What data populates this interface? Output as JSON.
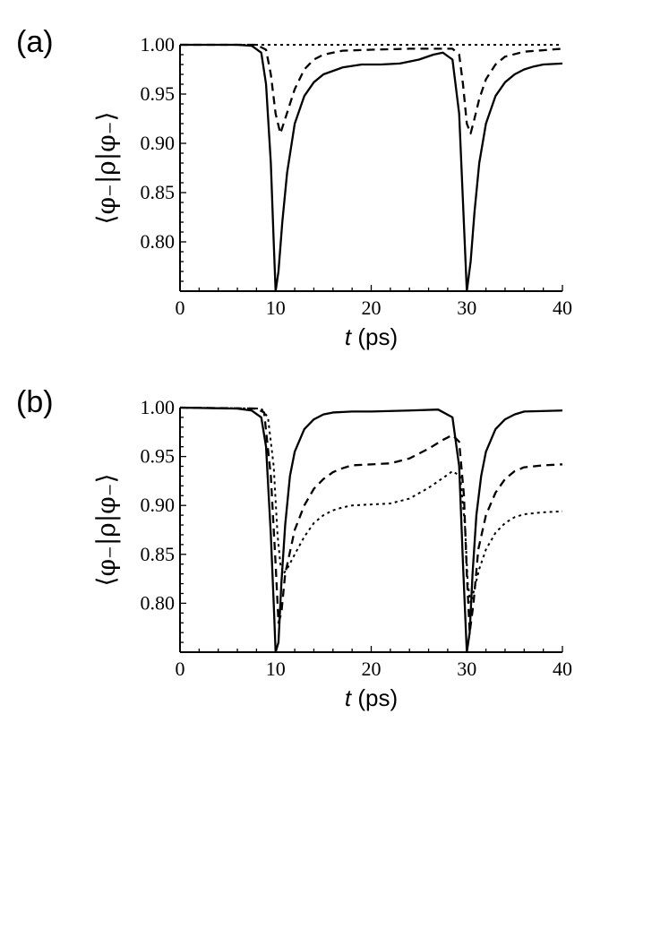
{
  "chart_data": [
    {
      "type": "line",
      "panel_label": "(a)",
      "xlabel": "t",
      "xlabel_unit": "(ps)",
      "ylabel": "⟨φ₋|ρ|φ₋⟩",
      "xlim": [
        0,
        40
      ],
      "ylim": [
        0.75,
        1.0
      ],
      "x_ticks": [
        "0",
        "10",
        "20",
        "30",
        "40"
      ],
      "y_ticks": [
        "0.80",
        "0.85",
        "0.90",
        "0.95",
        "1.00"
      ],
      "grid": false,
      "series": [
        {
          "style": "solid",
          "x": [
            0,
            6,
            7.5,
            8.5,
            9.0,
            9.5,
            9.8,
            10.0,
            10.3,
            10.7,
            11.2,
            12,
            13,
            14,
            15,
            17,
            19,
            21,
            23,
            25,
            26.5,
            27.5,
            28.5,
            29.2,
            29.6,
            30.0,
            30.4,
            30.8,
            31.3,
            32,
            33,
            34,
            35,
            36,
            37,
            38,
            40
          ],
          "y": [
            1.0,
            1.0,
            0.999,
            0.992,
            0.96,
            0.88,
            0.8,
            0.75,
            0.77,
            0.82,
            0.87,
            0.92,
            0.948,
            0.962,
            0.97,
            0.977,
            0.98,
            0.98,
            0.981,
            0.985,
            0.99,
            0.992,
            0.985,
            0.93,
            0.84,
            0.75,
            0.78,
            0.83,
            0.88,
            0.92,
            0.948,
            0.962,
            0.97,
            0.975,
            0.978,
            0.98,
            0.981
          ]
        },
        {
          "style": "dashed",
          "x": [
            0,
            8,
            9.0,
            9.5,
            10.0,
            10.5,
            11,
            12,
            13,
            14,
            15,
            17,
            20,
            24,
            27,
            28.5,
            29.2,
            29.6,
            30.0,
            30.4,
            30.8,
            31.3,
            32,
            33,
            34,
            36,
            40
          ],
          "y": [
            1.0,
            1.0,
            0.995,
            0.97,
            0.93,
            0.91,
            0.925,
            0.955,
            0.975,
            0.985,
            0.99,
            0.994,
            0.995,
            0.996,
            0.996,
            0.996,
            0.99,
            0.96,
            0.92,
            0.91,
            0.925,
            0.945,
            0.965,
            0.98,
            0.988,
            0.993,
            0.996
          ]
        },
        {
          "style": "dotted",
          "x": [
            0,
            40
          ],
          "y": [
            1.0,
            1.0
          ]
        }
      ]
    },
    {
      "type": "line",
      "panel_label": "(b)",
      "xlabel": "t",
      "xlabel_unit": "(ps)",
      "ylabel": "⟨φ₋|ρ|φ₋⟩",
      "xlim": [
        0,
        40
      ],
      "ylim": [
        0.75,
        1.0
      ],
      "x_ticks": [
        "0",
        "10",
        "20",
        "30",
        "40"
      ],
      "y_ticks": [
        "0.80",
        "0.85",
        "0.90",
        "0.95",
        "1.00"
      ],
      "grid": false,
      "series": [
        {
          "style": "solid",
          "x": [
            0,
            6,
            7.5,
            8.5,
            9.0,
            9.5,
            9.8,
            10.0,
            10.3,
            10.6,
            11.0,
            11.5,
            12,
            13,
            14,
            15,
            16,
            18,
            20,
            24,
            27,
            28.5,
            29.2,
            29.6,
            30.0,
            30.3,
            30.6,
            31.0,
            31.5,
            32,
            33,
            34,
            35,
            36,
            40
          ],
          "y": [
            1.0,
            0.999,
            0.997,
            0.99,
            0.96,
            0.87,
            0.8,
            0.75,
            0.76,
            0.82,
            0.88,
            0.93,
            0.955,
            0.978,
            0.988,
            0.993,
            0.995,
            0.996,
            0.996,
            0.997,
            0.998,
            0.99,
            0.94,
            0.84,
            0.75,
            0.77,
            0.83,
            0.89,
            0.93,
            0.955,
            0.978,
            0.988,
            0.993,
            0.996,
            0.997
          ]
        },
        {
          "style": "dashed",
          "x": [
            0,
            8,
            8.8,
            9.5,
            10.0,
            10.3,
            10.6,
            11,
            12,
            13,
            14,
            15,
            16,
            17,
            18,
            20,
            22,
            24,
            26,
            27.5,
            28.5,
            29.2,
            29.7,
            30.0,
            30.3,
            30.7,
            31.2,
            32,
            33,
            34,
            35,
            36,
            38,
            40
          ],
          "y": [
            1.0,
            0.999,
            0.995,
            0.93,
            0.84,
            0.78,
            0.79,
            0.83,
            0.875,
            0.9,
            0.917,
            0.927,
            0.934,
            0.938,
            0.941,
            0.942,
            0.943,
            0.948,
            0.958,
            0.967,
            0.972,
            0.965,
            0.91,
            0.83,
            0.77,
            0.8,
            0.855,
            0.89,
            0.913,
            0.927,
            0.935,
            0.939,
            0.941,
            0.942
          ]
        },
        {
          "style": "dotted",
          "x": [
            0,
            8.5,
            9.2,
            9.8,
            10.2,
            10.5,
            10.8,
            11.2,
            12,
            13,
            14,
            15,
            16,
            17,
            18,
            20,
            22,
            24,
            26,
            27.5,
            28.5,
            29.3,
            29.8,
            30.1,
            30.4,
            30.8,
            31.3,
            32,
            33,
            34,
            35,
            36,
            38,
            40
          ],
          "y": [
            1.0,
            0.999,
            0.99,
            0.94,
            0.87,
            0.84,
            0.83,
            0.835,
            0.85,
            0.868,
            0.882,
            0.89,
            0.895,
            0.898,
            0.9,
            0.901,
            0.902,
            0.907,
            0.918,
            0.928,
            0.935,
            0.93,
            0.88,
            0.82,
            0.8,
            0.815,
            0.835,
            0.855,
            0.872,
            0.882,
            0.888,
            0.891,
            0.893,
            0.894
          ]
        }
      ]
    }
  ]
}
